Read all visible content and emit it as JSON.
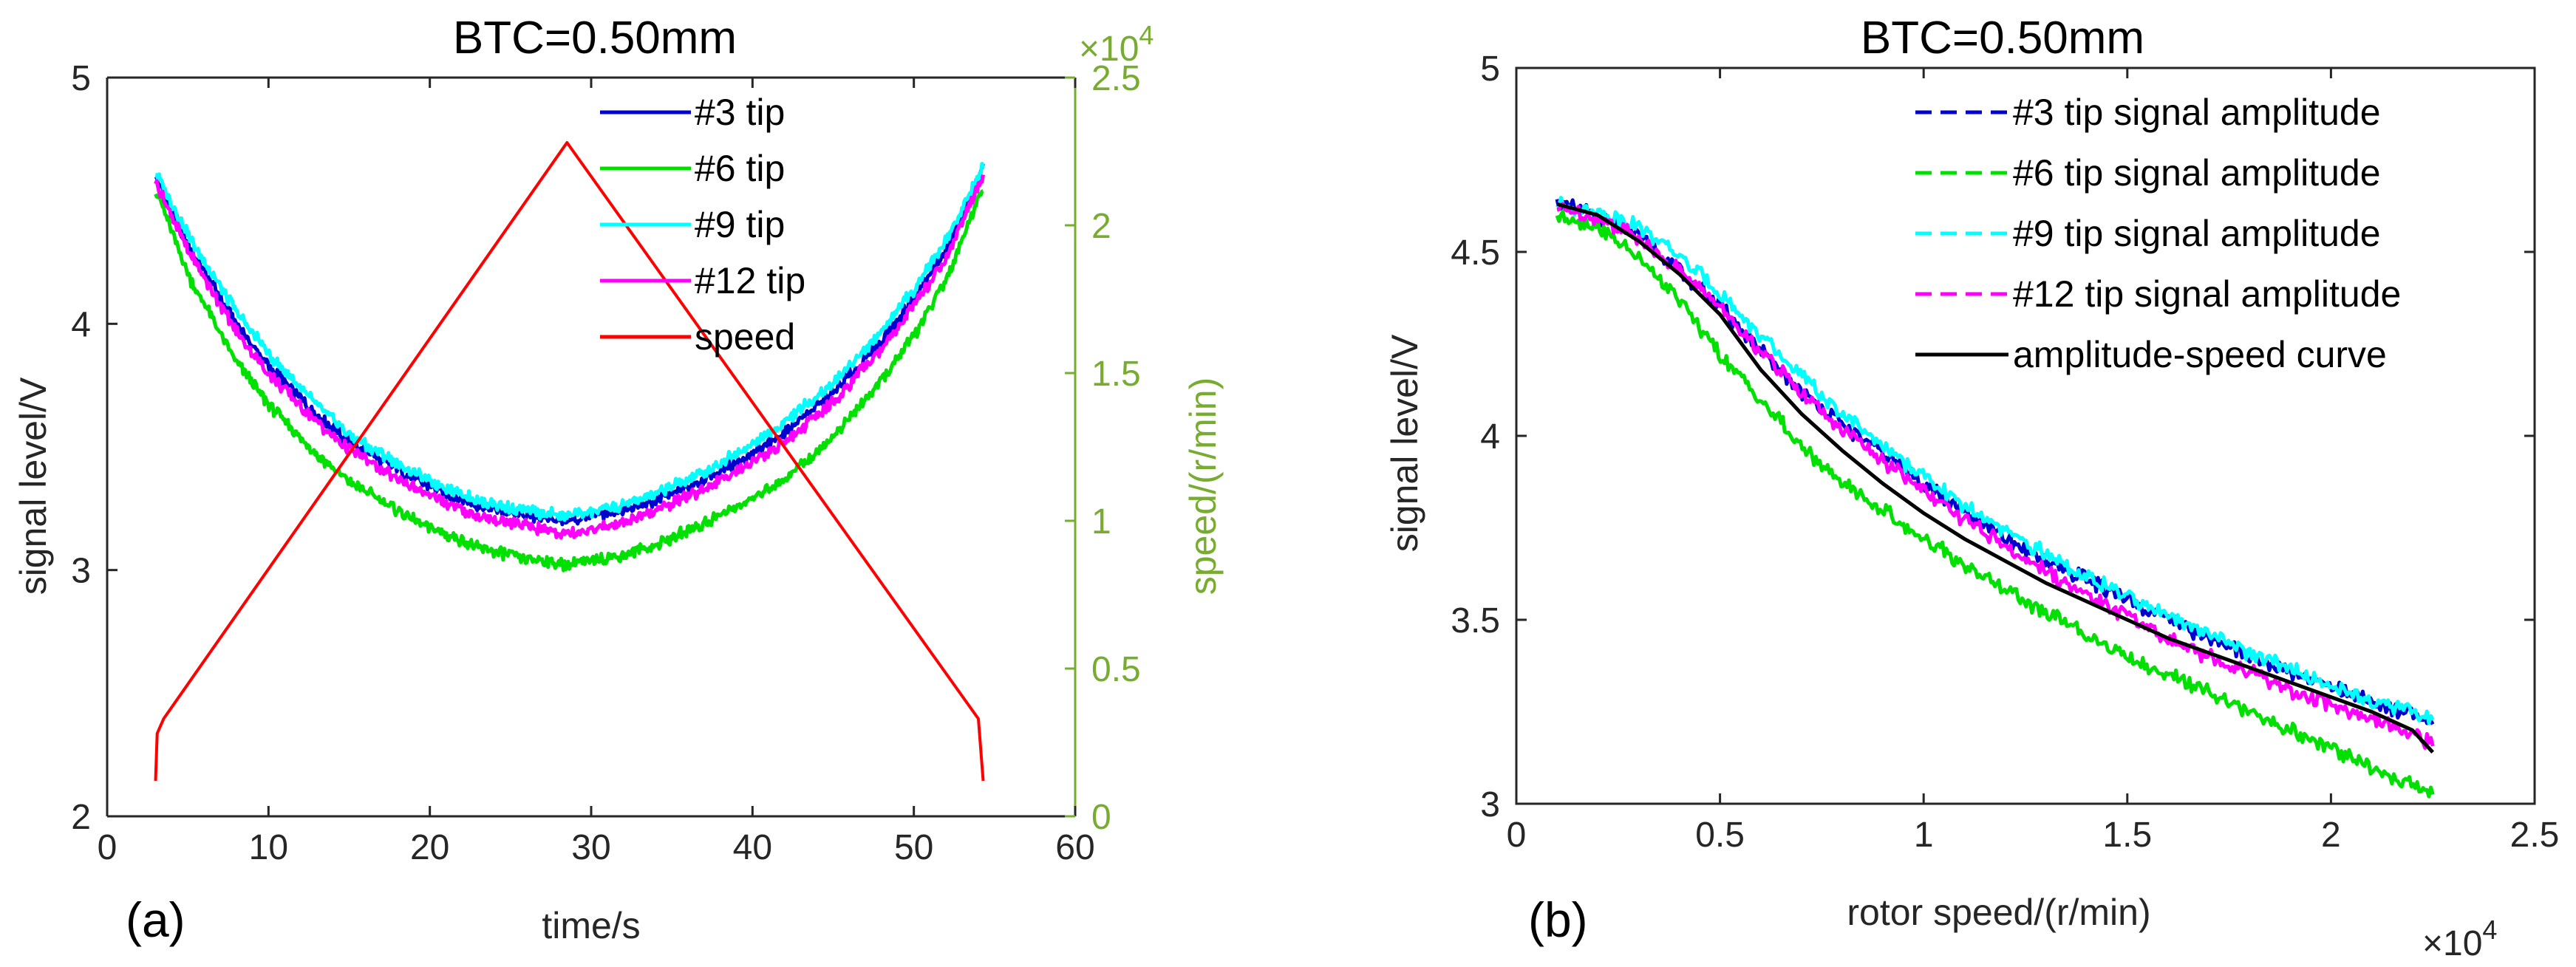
{
  "panel_a_label": "(a)",
  "panel_b_label": "(b)",
  "chart_data": [
    {
      "type": "line",
      "title": "BTC=0.50mm",
      "xlabel": "time/s",
      "ylabel": "signal level/V",
      "y2label": "speed/(r/min)",
      "y2_exponent": "×10",
      "y2_exponent_power": "4",
      "xlim": [
        0,
        60
      ],
      "ylim": [
        2,
        5
      ],
      "y2lim": [
        0,
        2.5
      ],
      "xticks": [
        0,
        10,
        20,
        30,
        40,
        50,
        60
      ],
      "yticks": [
        2,
        3,
        4,
        5
      ],
      "y2ticks": [
        0,
        0.5,
        1,
        1.5,
        2,
        2.5
      ],
      "legend_position": "top-center",
      "grid": false,
      "y2_color": "#77ac30",
      "series": [
        {
          "name": "#3 tip",
          "color": "#0000cc",
          "axis": "left",
          "x": [
            3,
            5,
            8,
            10,
            13,
            15,
            18,
            20,
            23,
            25,
            28.5,
            32,
            34,
            37,
            40,
            42,
            45,
            48,
            50,
            52,
            54.3
          ],
          "y": [
            4.6,
            4.32,
            4.0,
            3.83,
            3.63,
            3.52,
            3.41,
            3.34,
            3.26,
            3.23,
            3.2,
            3.24,
            3.28,
            3.37,
            3.47,
            3.56,
            3.72,
            3.93,
            4.1,
            4.3,
            4.63
          ]
        },
        {
          "name": "#6 tip",
          "color": "#00e000",
          "axis": "left",
          "x": [
            3,
            5,
            8,
            10,
            13,
            15,
            18,
            20,
            23,
            25,
            28.5,
            32,
            34,
            37,
            40,
            42,
            45,
            48,
            50,
            52,
            54.3
          ],
          "y": [
            4.55,
            4.2,
            3.85,
            3.67,
            3.47,
            3.36,
            3.24,
            3.17,
            3.09,
            3.06,
            3.02,
            3.06,
            3.1,
            3.19,
            3.29,
            3.37,
            3.54,
            3.77,
            3.95,
            4.18,
            4.56
          ]
        },
        {
          "name": "#9 tip",
          "color": "#00ffff",
          "axis": "left",
          "x": [
            3,
            5,
            8,
            10,
            13,
            15,
            18,
            20,
            23,
            25,
            28.5,
            32,
            34,
            37,
            40,
            42,
            45,
            48,
            50,
            52,
            54.3
          ],
          "y": [
            4.62,
            4.36,
            4.05,
            3.88,
            3.67,
            3.55,
            3.43,
            3.36,
            3.28,
            3.25,
            3.22,
            3.26,
            3.31,
            3.4,
            3.51,
            3.6,
            3.76,
            3.97,
            4.14,
            4.34,
            4.64
          ]
        },
        {
          "name": "#12 tip",
          "color": "#ff00ff",
          "axis": "left",
          "x": [
            3,
            5,
            8,
            10,
            13,
            15,
            18,
            20,
            23,
            25,
            28.5,
            32,
            34,
            37,
            40,
            42,
            45,
            48,
            50,
            52,
            54.3
          ],
          "y": [
            4.58,
            4.3,
            3.97,
            3.8,
            3.6,
            3.49,
            3.37,
            3.3,
            3.22,
            3.19,
            3.15,
            3.19,
            3.24,
            3.33,
            3.44,
            3.52,
            3.68,
            3.9,
            4.07,
            4.27,
            4.6
          ]
        },
        {
          "name": "speed",
          "color": "#ff0000",
          "axis": "right",
          "x": [
            3,
            3.1,
            3.5,
            28.5,
            54,
            54.3
          ],
          "y": [
            0.12,
            0.28,
            0.33,
            2.28,
            0.33,
            0.12
          ]
        }
      ]
    },
    {
      "type": "line",
      "title": "BTC=0.50mm",
      "xlabel": "rotor speed/(r/min)",
      "ylabel": "signal level/V",
      "x_exponent": "×10",
      "x_exponent_power": "4",
      "xlim": [
        0,
        2.5
      ],
      "ylim": [
        3,
        5
      ],
      "xticks": [
        0,
        0.5,
        1,
        1.5,
        2,
        2.5
      ],
      "yticks": [
        3,
        3.5,
        4,
        4.5,
        5
      ],
      "legend_position": "top-right",
      "grid": false,
      "series": [
        {
          "name": "#3 tip signal amplitude",
          "color": "#0000cc",
          "dash": true,
          "x": [
            0.1,
            0.2,
            0.3,
            0.4,
            0.5,
            0.6,
            0.7,
            0.8,
            0.9,
            1.0,
            1.1,
            1.2,
            1.3,
            1.4,
            1.5,
            1.6,
            1.7,
            1.8,
            1.9,
            2.0,
            2.1,
            2.2,
            2.25
          ],
          "y": [
            4.63,
            4.6,
            4.54,
            4.45,
            4.35,
            4.23,
            4.12,
            4.03,
            3.95,
            3.87,
            3.79,
            3.72,
            3.66,
            3.61,
            3.55,
            3.5,
            3.45,
            3.4,
            3.36,
            3.32,
            3.28,
            3.24,
            3.21
          ]
        },
        {
          "name": "#6 tip signal amplitude",
          "color": "#00e000",
          "dash": true,
          "x": [
            0.1,
            0.2,
            0.3,
            0.4,
            0.5,
            0.6,
            0.7,
            0.8,
            0.9,
            1.0,
            1.1,
            1.2,
            1.3,
            1.4,
            1.5,
            1.6,
            1.7,
            1.8,
            1.9,
            2.0,
            2.1,
            2.2,
            2.25
          ],
          "y": [
            4.6,
            4.57,
            4.48,
            4.37,
            4.22,
            4.1,
            3.97,
            3.87,
            3.8,
            3.72,
            3.65,
            3.58,
            3.52,
            3.46,
            3.4,
            3.35,
            3.3,
            3.25,
            3.2,
            3.15,
            3.1,
            3.05,
            3.03
          ]
        },
        {
          "name": "#9 tip signal amplitude",
          "color": "#00ffff",
          "dash": true,
          "x": [
            0.1,
            0.2,
            0.3,
            0.4,
            0.5,
            0.6,
            0.7,
            0.8,
            0.9,
            1.0,
            1.1,
            1.2,
            1.3,
            1.4,
            1.5,
            1.6,
            1.7,
            1.8,
            1.9,
            2.0,
            2.1,
            2.2,
            2.25
          ],
          "y": [
            4.63,
            4.61,
            4.57,
            4.49,
            4.39,
            4.27,
            4.16,
            4.06,
            3.97,
            3.89,
            3.81,
            3.74,
            3.68,
            3.62,
            3.56,
            3.51,
            3.46,
            3.41,
            3.37,
            3.32,
            3.28,
            3.25,
            3.22
          ]
        },
        {
          "name": "#12 tip signal amplitude",
          "color": "#ff00ff",
          "dash": true,
          "x": [
            0.1,
            0.2,
            0.3,
            0.4,
            0.5,
            0.6,
            0.7,
            0.8,
            0.9,
            1.0,
            1.1,
            1.2,
            1.3,
            1.4,
            1.5,
            1.6,
            1.7,
            1.8,
            1.9,
            2.0,
            2.1,
            2.2,
            2.25
          ],
          "y": [
            4.62,
            4.59,
            4.54,
            4.45,
            4.35,
            4.23,
            4.12,
            4.02,
            3.93,
            3.85,
            3.77,
            3.7,
            3.63,
            3.57,
            3.51,
            3.45,
            3.4,
            3.36,
            3.31,
            3.27,
            3.23,
            3.19,
            3.16
          ]
        },
        {
          "name": "amplitude-speed curve",
          "color": "#000000",
          "dash": false,
          "x": [
            0.1,
            0.2,
            0.3,
            0.4,
            0.5,
            0.6,
            0.7,
            0.8,
            0.9,
            1.0,
            1.1,
            1.2,
            1.3,
            1.4,
            1.5,
            1.6,
            1.7,
            1.8,
            1.9,
            2.0,
            2.1,
            2.2,
            2.25
          ],
          "y": [
            4.63,
            4.6,
            4.53,
            4.44,
            4.33,
            4.18,
            4.06,
            3.96,
            3.87,
            3.79,
            3.72,
            3.66,
            3.6,
            3.55,
            3.5,
            3.45,
            3.41,
            3.37,
            3.33,
            3.29,
            3.25,
            3.2,
            3.14
          ]
        }
      ]
    }
  ]
}
